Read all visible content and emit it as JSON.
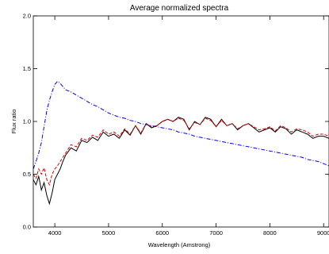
{
  "chart_data": {
    "type": "line",
    "title": "Average normalized spectra",
    "xlabel": "Wavelength (Amstrong)",
    "ylabel": "Flux ratio",
    "xlim": [
      3600,
      9100
    ],
    "ylim": [
      0.0,
      2.0
    ],
    "x_ticks": [
      4000,
      5000,
      6000,
      7000,
      8000,
      9000
    ],
    "x_tick_labels": [
      "4000",
      "5000",
      "6000",
      "7000",
      "8000",
      "9000"
    ],
    "y_ticks": [
      0.0,
      0.5,
      1.0,
      1.5,
      2.0
    ],
    "y_tick_labels": [
      "0.0",
      "0.5",
      "1.0",
      "1.5",
      "2.0"
    ],
    "grid": false,
    "series": [
      {
        "color": "#000000",
        "style": "solid",
        "x": [
          3600,
          3650,
          3700,
          3750,
          3800,
          3850,
          3900,
          3950,
          4000,
          4050,
          4100,
          4150,
          4200,
          4300,
          4400,
          4500,
          4600,
          4700,
          4800,
          4900,
          5000,
          5100,
          5200,
          5300,
          5400,
          5500,
          5600,
          5700,
          5800,
          5900,
          6000,
          6100,
          6200,
          6300,
          6400,
          6500,
          6600,
          6700,
          6800,
          6900,
          7000,
          7100,
          7200,
          7300,
          7400,
          7500,
          7600,
          7700,
          7800,
          7900,
          8000,
          8100,
          8200,
          8300,
          8400,
          8500,
          8600,
          8700,
          8800,
          8900,
          9000,
          9100
        ],
        "y": [
          0.45,
          0.4,
          0.48,
          0.35,
          0.42,
          0.3,
          0.22,
          0.32,
          0.45,
          0.5,
          0.55,
          0.62,
          0.68,
          0.75,
          0.72,
          0.82,
          0.8,
          0.85,
          0.82,
          0.9,
          0.86,
          0.88,
          0.84,
          0.92,
          0.87,
          0.96,
          0.88,
          0.98,
          0.94,
          0.96,
          1.0,
          1.02,
          1.0,
          1.04,
          1.02,
          0.92,
          1.0,
          0.97,
          1.04,
          1.02,
          0.95,
          1.02,
          0.96,
          0.98,
          0.92,
          0.96,
          0.98,
          0.94,
          0.9,
          0.92,
          0.94,
          0.9,
          0.95,
          0.93,
          0.88,
          0.92,
          0.9,
          0.88,
          0.84,
          0.86,
          0.86,
          0.84
        ]
      },
      {
        "color": "#dd0000",
        "style": "dashed",
        "x": [
          3600,
          3650,
          3700,
          3750,
          3800,
          3850,
          3900,
          3950,
          4000,
          4050,
          4100,
          4150,
          4200,
          4300,
          4400,
          4500,
          4600,
          4700,
          4800,
          4900,
          5000,
          5100,
          5200,
          5300,
          5400,
          5500,
          5600,
          5700,
          5800,
          5900,
          6000,
          6100,
          6200,
          6300,
          6400,
          6500,
          6600,
          6700,
          6800,
          6900,
          7000,
          7100,
          7200,
          7300,
          7400,
          7500,
          7600,
          7700,
          7800,
          7900,
          8000,
          8100,
          8200,
          8300,
          8400,
          8500,
          8600,
          8700,
          8800,
          8900,
          9000,
          9100
        ],
        "y": [
          0.5,
          0.46,
          0.55,
          0.5,
          0.56,
          0.45,
          0.4,
          0.5,
          0.55,
          0.58,
          0.62,
          0.66,
          0.7,
          0.78,
          0.76,
          0.84,
          0.82,
          0.87,
          0.85,
          0.92,
          0.88,
          0.9,
          0.86,
          0.93,
          0.88,
          0.96,
          0.89,
          0.98,
          0.95,
          0.96,
          1.0,
          1.02,
          1.0,
          1.03,
          1.01,
          0.93,
          0.99,
          0.97,
          1.03,
          1.01,
          0.95,
          1.01,
          0.96,
          0.98,
          0.93,
          0.96,
          0.98,
          0.95,
          0.92,
          0.93,
          0.95,
          0.91,
          0.96,
          0.94,
          0.9,
          0.93,
          0.92,
          0.9,
          0.86,
          0.88,
          0.88,
          0.86
        ]
      },
      {
        "color": "#0000ee",
        "style": "dashdot",
        "x": [
          3600,
          3650,
          3700,
          3750,
          3800,
          3850,
          3900,
          3950,
          4000,
          4050,
          4100,
          4150,
          4200,
          4300,
          4400,
          4500,
          4600,
          4700,
          4800,
          4900,
          5000,
          5100,
          5200,
          5300,
          5400,
          5500,
          5600,
          5700,
          5800,
          5900,
          6000,
          6100,
          6200,
          6300,
          6400,
          6500,
          6600,
          6700,
          6800,
          6900,
          7000,
          7100,
          7200,
          7300,
          7400,
          7500,
          7600,
          7700,
          7800,
          7900,
          8000,
          8100,
          8200,
          8300,
          8400,
          8500,
          8600,
          8700,
          8800,
          8900,
          9000,
          9100
        ],
        "y": [
          0.55,
          0.62,
          0.7,
          0.8,
          0.95,
          1.1,
          1.2,
          1.28,
          1.35,
          1.38,
          1.36,
          1.33,
          1.3,
          1.28,
          1.25,
          1.22,
          1.19,
          1.16,
          1.14,
          1.11,
          1.08,
          1.06,
          1.04,
          1.03,
          1.01,
          1.0,
          0.98,
          0.97,
          0.96,
          0.95,
          0.94,
          0.93,
          0.92,
          0.9,
          0.89,
          0.88,
          0.86,
          0.85,
          0.84,
          0.83,
          0.82,
          0.81,
          0.8,
          0.79,
          0.78,
          0.77,
          0.76,
          0.75,
          0.74,
          0.73,
          0.72,
          0.71,
          0.7,
          0.69,
          0.68,
          0.67,
          0.66,
          0.64,
          0.63,
          0.62,
          0.6,
          0.58
        ]
      }
    ]
  }
}
